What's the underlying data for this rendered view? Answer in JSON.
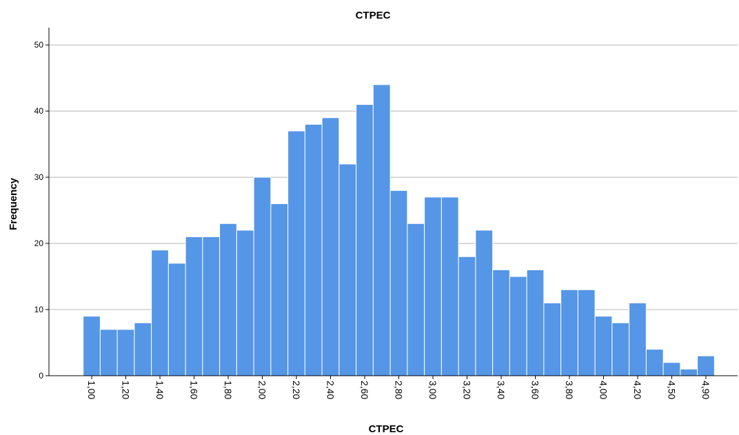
{
  "chart_data": {
    "type": "bar",
    "title": "CTPEC",
    "x_label": "CTPEC",
    "y_label": "Frequency",
    "categories": [
      "1,00",
      null,
      "1,20",
      null,
      "1,40",
      null,
      "1,60",
      null,
      "1,80",
      null,
      "2,00",
      null,
      "2,20",
      null,
      "2,40",
      null,
      "2,60",
      null,
      "2,80",
      null,
      "3,00",
      null,
      "3,20",
      null,
      "3,40",
      null,
      "3,60",
      null,
      "3,80",
      null,
      "4,00",
      null,
      "4,20",
      null,
      "4,50",
      null,
      "4,90"
    ],
    "values": [
      9,
      7,
      7,
      8,
      19,
      17,
      21,
      21,
      23,
      22,
      30,
      26,
      37,
      38,
      39,
      32,
      41,
      44,
      28,
      23,
      27,
      27,
      18,
      22,
      16,
      15,
      16,
      11,
      13,
      13,
      9,
      8,
      11,
      4,
      2,
      1,
      3
    ],
    "color": "#5596e6",
    "ylim": [
      0,
      52
    ],
    "yticks": [
      0,
      10,
      20,
      30,
      40,
      50
    ],
    "grid": true
  }
}
